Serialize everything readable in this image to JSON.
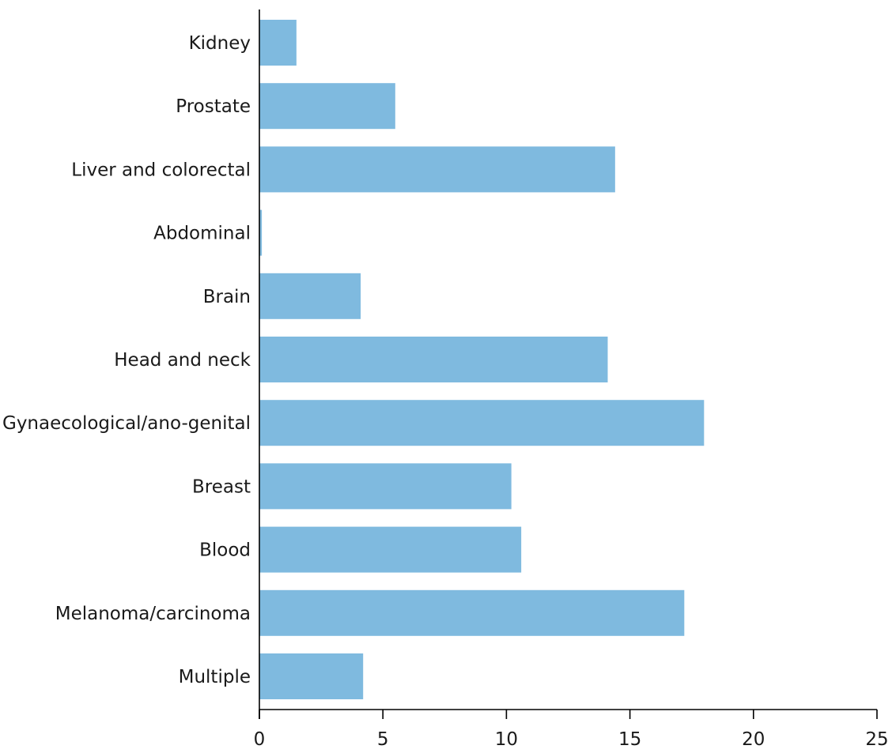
{
  "chart_data": {
    "type": "bar",
    "orientation": "horizontal",
    "categories": [
      "Kidney",
      "Prostate",
      "Liver and colorectal",
      "Abdominal",
      "Brain",
      "Head and neck",
      "Gynaecological/ano-genital",
      "Breast",
      "Blood",
      "Melanoma/carcinoma",
      "Multiple"
    ],
    "values": [
      1.5,
      5.5,
      14.4,
      0.1,
      4.1,
      14.1,
      18.0,
      10.2,
      10.6,
      17.2,
      4.2
    ],
    "xlim": [
      0,
      25
    ],
    "xticks": [
      "0",
      "5",
      "10",
      "15",
      "20",
      "25"
    ],
    "title": "",
    "xlabel": "",
    "ylabel": "",
    "grid": false,
    "legend": "none",
    "bar_color": "#7fbadf",
    "axis_color": "#000000"
  }
}
